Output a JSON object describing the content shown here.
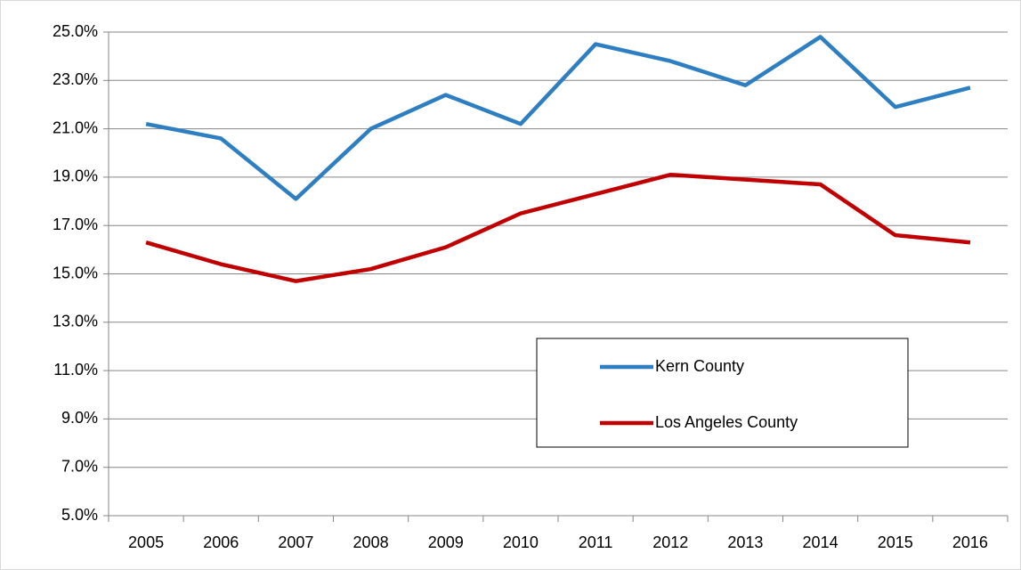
{
  "chart_data": {
    "type": "line",
    "categories": [
      "2005",
      "2006",
      "2007",
      "2008",
      "2009",
      "2010",
      "2011",
      "2012",
      "2013",
      "2014",
      "2015",
      "2016"
    ],
    "series": [
      {
        "name": "Kern County",
        "color": "#2e7ec2",
        "values": [
          21.2,
          20.6,
          18.1,
          21.0,
          22.4,
          21.2,
          24.5,
          23.8,
          22.8,
          24.8,
          21.9,
          22.7
        ]
      },
      {
        "name": "Los Angeles County",
        "color": "#c00000",
        "values": [
          16.3,
          15.4,
          14.7,
          15.2,
          16.1,
          17.5,
          18.3,
          19.1,
          18.9,
          18.7,
          16.6,
          16.3
        ]
      }
    ],
    "ylim": [
      5,
      25
    ],
    "yticks": [
      {
        "value": 5,
        "label": "5.0%"
      },
      {
        "value": 7,
        "label": "7.0%"
      },
      {
        "value": 9,
        "label": "9.0%"
      },
      {
        "value": 11,
        "label": "11.0%"
      },
      {
        "value": 13,
        "label": "13.0%"
      },
      {
        "value": 15,
        "label": "15.0%"
      },
      {
        "value": 17,
        "label": "17.0%"
      },
      {
        "value": 19,
        "label": "19.0%"
      },
      {
        "value": 21,
        "label": "21.0%"
      },
      {
        "value": 23,
        "label": "23.0%"
      },
      {
        "value": 25,
        "label": "25.0%"
      }
    ],
    "grid": true
  }
}
